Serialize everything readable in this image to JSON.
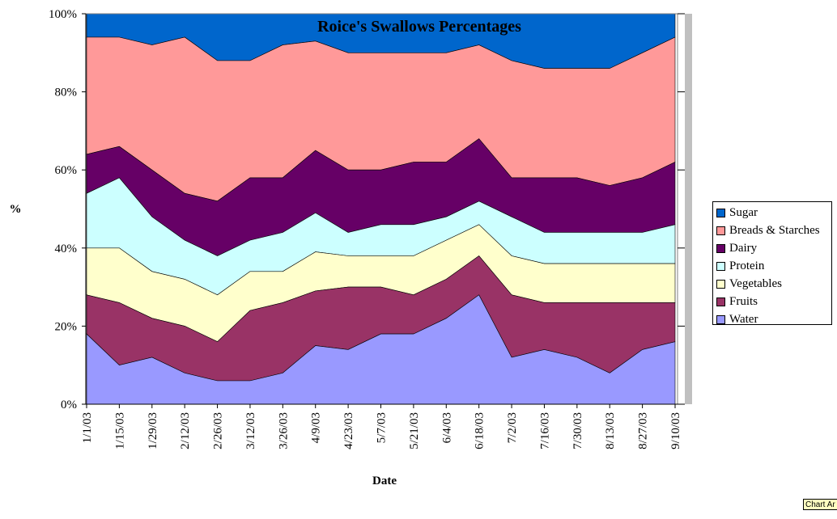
{
  "chart_data": {
    "type": "area",
    "stacked": "percent",
    "title": "Roice's Swallows Percentages",
    "xlabel": "Date",
    "ylabel": "%",
    "ylim": [
      0,
      100
    ],
    "y_ticks": [
      "0%",
      "20%",
      "40%",
      "60%",
      "80%",
      "100%"
    ],
    "x_ticks": [
      "1/1/03",
      "1/15/03",
      "1/29/03",
      "2/12/03",
      "2/26/03",
      "3/12/03",
      "3/26/03",
      "4/9/03",
      "4/23/03",
      "5/7/03",
      "5/21/03",
      "6/4/03",
      "6/18/03",
      "7/2/03",
      "7/16/03",
      "7/30/03",
      "8/13/03",
      "8/27/03",
      "9/10/03"
    ],
    "grid": true,
    "legend_position": "right",
    "x_range": [
      "1/1/03",
      "9/12/03"
    ],
    "series_note_per_point": "cumulative top-boundary approximations at each x tick",
    "series": [
      {
        "name": "Water",
        "color": "#9999ff",
        "values": [
          18,
          10,
          12,
          8,
          6,
          6,
          8,
          15,
          14,
          18,
          18,
          22,
          28,
          12,
          14,
          12,
          8,
          14,
          16
        ]
      },
      {
        "name": "Fruits",
        "color": "#993366",
        "values": [
          10,
          16,
          10,
          12,
          10,
          18,
          18,
          14,
          16,
          12,
          10,
          10,
          10,
          16,
          12,
          14,
          18,
          12,
          10
        ]
      },
      {
        "name": "Vegetables",
        "color": "#ffffcc",
        "values": [
          12,
          14,
          12,
          12,
          12,
          10,
          8,
          10,
          8,
          8,
          10,
          10,
          8,
          10,
          10,
          10,
          10,
          10,
          10
        ]
      },
      {
        "name": "Protein",
        "color": "#ccffff",
        "values": [
          14,
          18,
          14,
          10,
          10,
          8,
          10,
          10,
          6,
          8,
          8,
          6,
          6,
          10,
          8,
          8,
          8,
          8,
          10
        ]
      },
      {
        "name": "Dairy",
        "color": "#660066",
        "values": [
          10,
          8,
          12,
          12,
          14,
          16,
          14,
          16,
          16,
          14,
          16,
          14,
          16,
          10,
          14,
          14,
          12,
          14,
          16
        ]
      },
      {
        "name": "Breads & Starches",
        "color": "#ff9999",
        "values": [
          30,
          28,
          32,
          40,
          36,
          30,
          34,
          28,
          30,
          30,
          28,
          28,
          24,
          30,
          28,
          28,
          30,
          32,
          32
        ]
      },
      {
        "name": "Sugar",
        "color": "#0066cc",
        "values": [
          6,
          6,
          8,
          6,
          12,
          12,
          8,
          7,
          10,
          10,
          10,
          10,
          8,
          12,
          14,
          14,
          14,
          10,
          6
        ]
      }
    ]
  },
  "ui": {
    "chart_area_tag": "Chart Ar"
  }
}
